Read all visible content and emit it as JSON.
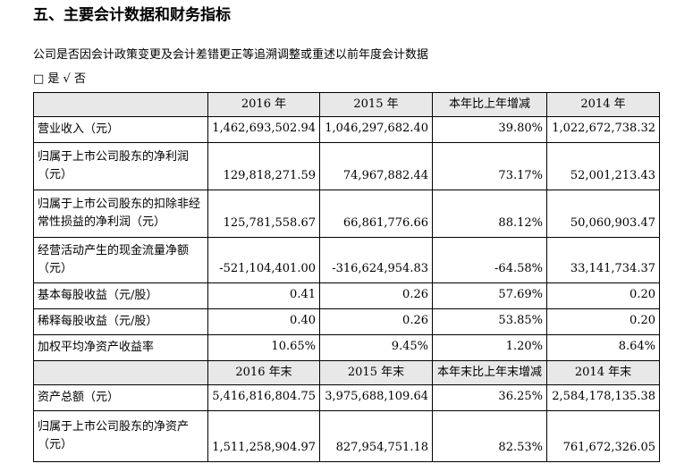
{
  "header": {
    "title": "五、主要会计数据和财务指标"
  },
  "question": "公司是否因会计政策变更及会计差错更正等追溯调整或重述以前年度会计数据",
  "options": "□ 是 √ 否",
  "table": {
    "head1": [
      "2016 年",
      "2015 年",
      "本年比上年增减",
      "2014 年"
    ],
    "body1": [
      [
        "营业收入（元）",
        "1,462,693,502.94",
        "1,046,297,682.40",
        "39.80%",
        "1,022,672,738.32"
      ],
      [
        "归属于上市公司股东的净利润（元）",
        "129,818,271.59",
        "74,967,882.44",
        "73.17%",
        "52,001,213.43"
      ],
      [
        "归属于上市公司股东的扣除非经常性损益的净利润（元）",
        "125,781,558.67",
        "66,861,776.66",
        "88.12%",
        "50,060,903.47"
      ],
      [
        "经营活动产生的现金流量净额（元）",
        "-521,104,401.00",
        "-316,624,954.83",
        "-64.58%",
        "33,141,734.37"
      ],
      [
        "基本每股收益（元/股）",
        "0.41",
        "0.26",
        "57.69%",
        "0.20"
      ],
      [
        "稀释每股收益（元/股）",
        "0.40",
        "0.26",
        "53.85%",
        "0.20"
      ],
      [
        "加权平均净资产收益率",
        "10.65%",
        "9.45%",
        "1.20%",
        "8.64%"
      ]
    ],
    "head2": [
      "2016 年末",
      "2015 年末",
      "本年末比上年末增减",
      "2014 年末"
    ],
    "body2": [
      [
        "资产总额（元）",
        "5,416,816,804.75",
        "3,975,688,109.64",
        "36.25%",
        "2,584,178,135.38"
      ],
      [
        "归属于上市公司股东的净资产（元）",
        "1,511,258,904.97",
        "827,954,751.18",
        "82.53%",
        "761,672,326.05"
      ]
    ]
  }
}
